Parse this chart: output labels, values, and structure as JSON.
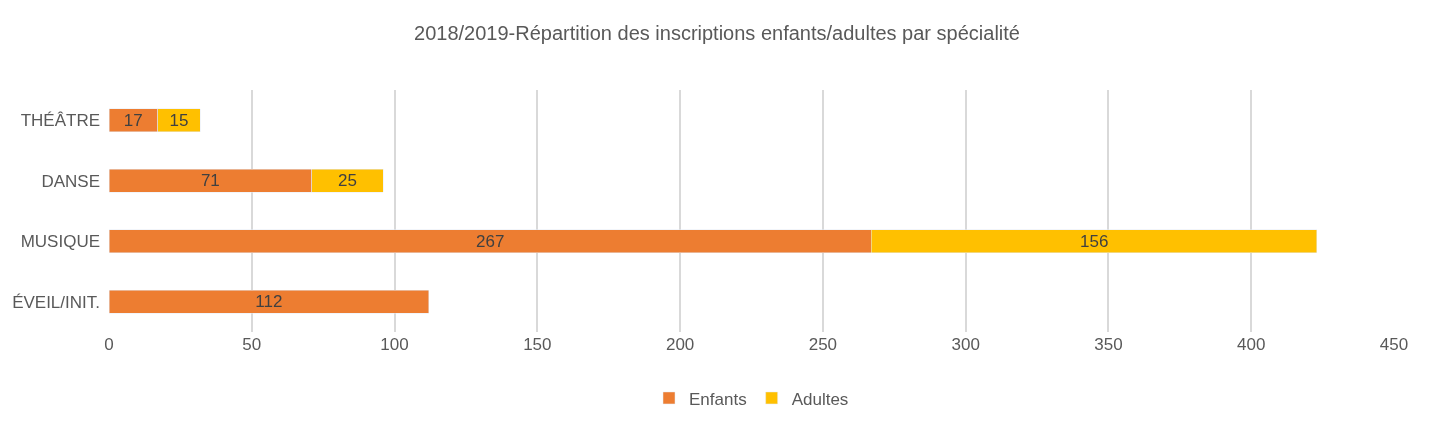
{
  "chart_data": {
    "type": "bar",
    "orientation": "horizontal",
    "stacked": true,
    "title": "2018/2019-Répartition des inscriptions enfants/adultes par spécialité",
    "categories": [
      "THÉÂTRE",
      "DANSE",
      "MUSIQUE",
      "ÉVEIL/INIT."
    ],
    "series": [
      {
        "name": "Enfants",
        "color": "#ed7d31",
        "values": [
          17,
          71,
          267,
          112
        ]
      },
      {
        "name": "Adultes",
        "color": "#ffc000",
        "values": [
          15,
          25,
          156,
          null
        ]
      }
    ],
    "xlim": [
      0,
      450
    ],
    "xticks": [
      0,
      50,
      100,
      150,
      200,
      250,
      300,
      350,
      400,
      450
    ],
    "grid": "x",
    "legend": "bottom",
    "data_labels": true
  }
}
